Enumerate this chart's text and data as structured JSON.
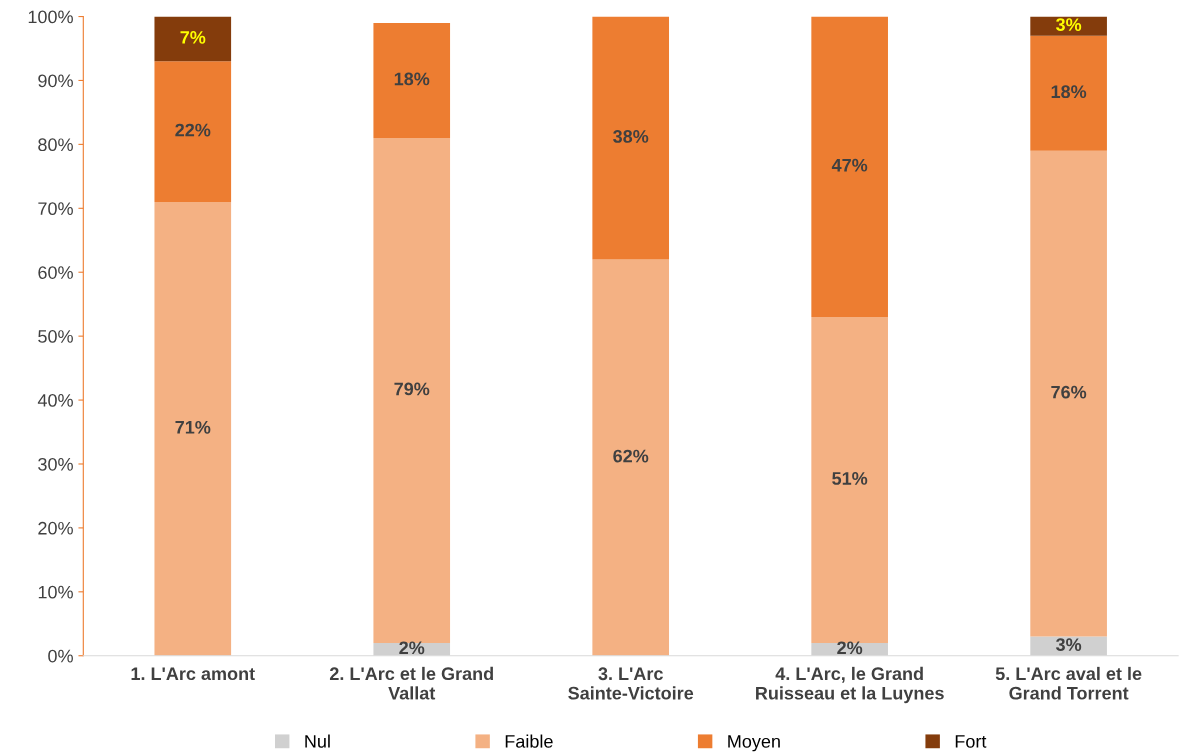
{
  "chart_data": {
    "type": "bar",
    "stacked": true,
    "categories": [
      "1. L'Arc amont",
      "2. L'Arc et le Grand Vallat",
      "3. L'Arc Sainte-Victoire",
      "4. L'Arc, le Grand Ruisseau et la Luynes",
      "5. L'Arc aval et le Grand Torrent"
    ],
    "series": [
      {
        "name": "Nul",
        "color": "#d0d0d0",
        "values": [
          0,
          2,
          0,
          2,
          3
        ],
        "value_labels": [
          null,
          "2%",
          null,
          "2%",
          "3%"
        ]
      },
      {
        "name": "Faible",
        "color": "#f4b183",
        "values": [
          71,
          79,
          62,
          51,
          76
        ],
        "value_labels": [
          "71%",
          "79%",
          "62%",
          "51%",
          "76%"
        ]
      },
      {
        "name": "Moyen",
        "color": "#ed7d31",
        "values": [
          22,
          18,
          38,
          47,
          18
        ],
        "value_labels": [
          "22%",
          "18%",
          "38%",
          "47%",
          "18%"
        ]
      },
      {
        "name": "Fort",
        "color": "#843c0c",
        "values": [
          7,
          0,
          0,
          0,
          3
        ],
        "value_labels": [
          "7%",
          null,
          null,
          null,
          "3%"
        ]
      }
    ],
    "ylim": [
      0,
      100
    ],
    "yticks": [
      {
        "value": 0,
        "label": "0%"
      },
      {
        "value": 10,
        "label": "10%"
      },
      {
        "value": 20,
        "label": "20%"
      },
      {
        "value": 30,
        "label": "30%"
      },
      {
        "value": 40,
        "label": "40%"
      },
      {
        "value": 50,
        "label": "50%"
      },
      {
        "value": 60,
        "label": "60%"
      },
      {
        "value": 70,
        "label": "70%"
      },
      {
        "value": 80,
        "label": "80%"
      },
      {
        "value": 90,
        "label": "90%"
      },
      {
        "value": 100,
        "label": "100%"
      }
    ],
    "grid": false,
    "legend": "bottom"
  }
}
